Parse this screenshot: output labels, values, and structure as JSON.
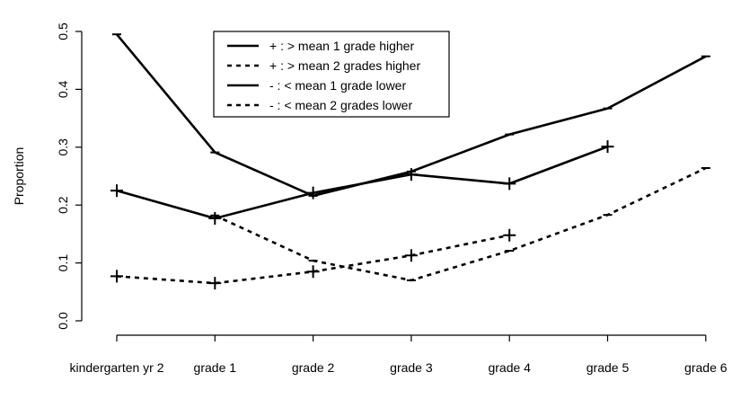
{
  "chart_data": {
    "type": "line",
    "xlabel": "",
    "ylabel": "Proportion",
    "categories": [
      "kindergarten yr 2",
      "grade 1",
      "grade 2",
      "grade 3",
      "grade 4",
      "grade 5",
      "grade 6"
    ],
    "ylim": [
      0,
      0.5
    ],
    "yticks": [
      "0.0",
      "0.1",
      "0.2",
      "0.3",
      "0.4",
      "0.5"
    ],
    "grid": false,
    "legend_position": "top-center",
    "series": [
      {
        "name": "+ : > mean 1 grade higher",
        "marker": "+",
        "line": "solid",
        "values": [
          0.225,
          0.177,
          0.221,
          0.253,
          0.237,
          0.301,
          null
        ]
      },
      {
        "name": "+ : > mean 2 grades higher",
        "marker": "+",
        "line": "dashed",
        "values": [
          0.077,
          0.065,
          0.085,
          0.113,
          0.148,
          null,
          null
        ]
      },
      {
        "name": "- : < mean 1 grade lower",
        "marker": "-",
        "line": "solid",
        "values": [
          0.495,
          0.291,
          0.216,
          0.258,
          0.322,
          0.367,
          0.457
        ]
      },
      {
        "name": "- : < mean 2 grades lower",
        "marker": "-",
        "line": "dashed",
        "values": [
          null,
          0.182,
          0.104,
          0.07,
          0.121,
          0.183,
          0.264
        ]
      }
    ]
  }
}
